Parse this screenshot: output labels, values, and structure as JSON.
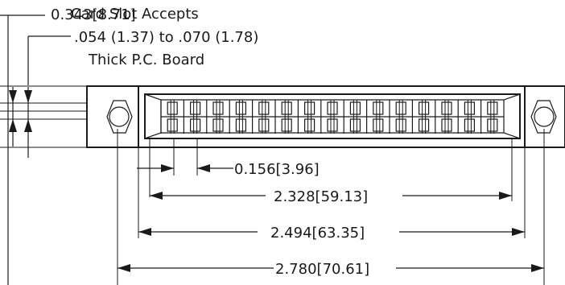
{
  "thickness_dim": {
    "inch": "0.343",
    "mm": "8.71"
  },
  "note": {
    "line1": "Card Slot Accepts",
    "line2": ".054 (1.37) to .070 (1.78)",
    "line3": "Thick P.C. Board"
  },
  "dimensions": {
    "pitch": {
      "inch": "0.156",
      "mm": "3.96"
    },
    "contact_span": {
      "inch": "2.328",
      "mm": "59.13"
    },
    "body_length": {
      "inch": "2.494",
      "mm": "63.35"
    },
    "overall_length": {
      "inch": "2.780",
      "mm": "70.61"
    }
  },
  "connector": {
    "positions_per_row": 15,
    "rows": 2
  }
}
